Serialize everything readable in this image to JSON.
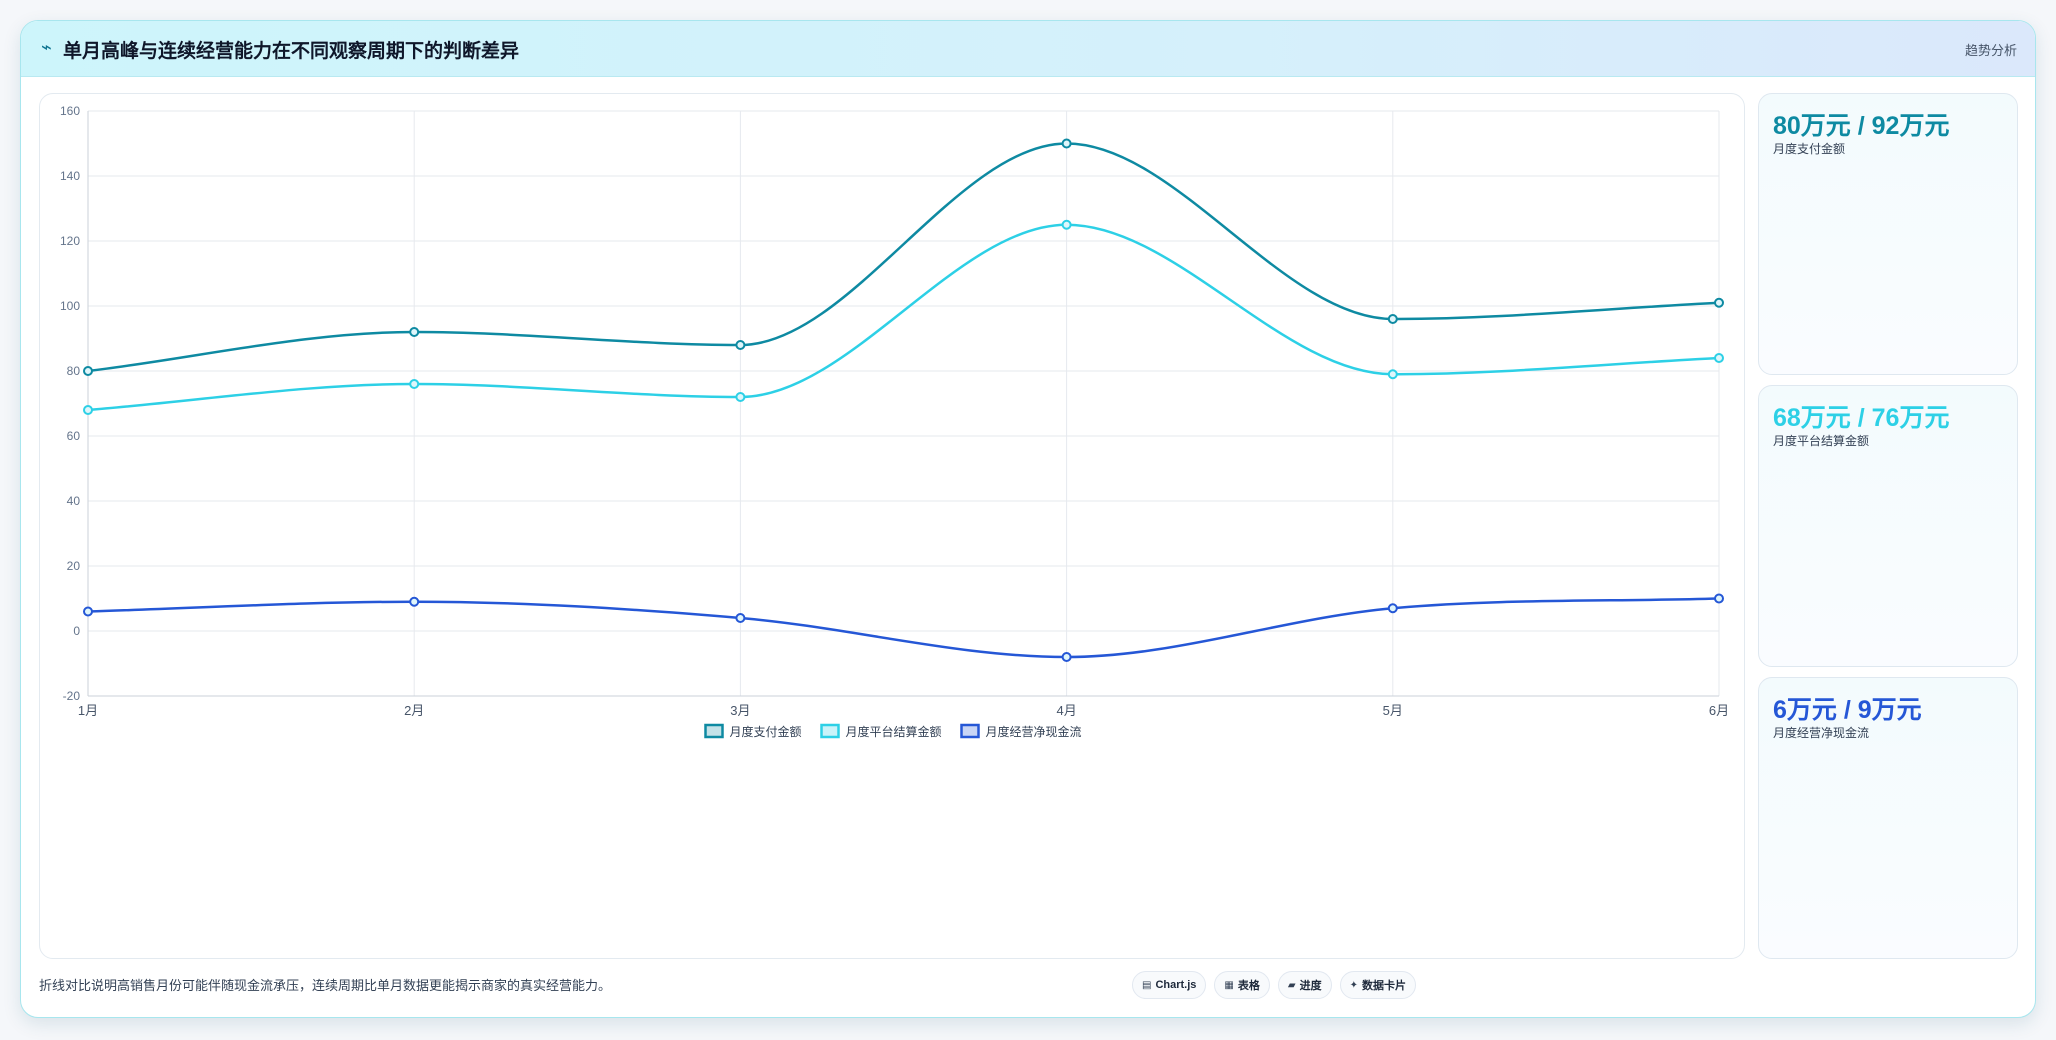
{
  "header": {
    "title": "单月高峰与连续经营能力在不同观察周期下的判断差异",
    "tag": "趋势分析"
  },
  "chart_data": {
    "type": "line",
    "categories": [
      "1月",
      "2月",
      "3月",
      "4月",
      "5月",
      "6月"
    ],
    "series": [
      {
        "name": "月度支付金额",
        "values": [
          80,
          92,
          88,
          150,
          96,
          101
        ],
        "color": "#0e8aa2"
      },
      {
        "name": "月度平台结算金额",
        "values": [
          68,
          76,
          72,
          125,
          79,
          84
        ],
        "color": "#2dd0e6"
      },
      {
        "name": "月度经营净现金流",
        "values": [
          6,
          9,
          4,
          -8,
          7,
          10
        ],
        "color": "#2557d6"
      }
    ],
    "ylim": [
      -20,
      160
    ],
    "yticks": [
      -20,
      0,
      20,
      40,
      60,
      80,
      100,
      120,
      140,
      160
    ],
    "grid": true,
    "legend_position": "bottom"
  },
  "side_cards": [
    {
      "value": "80万元 / 92万元",
      "label": "月度支付金额",
      "color": "#0e8aa2"
    },
    {
      "value": "68万元 / 76万元",
      "label": "月度平台结算金额",
      "color": "#2dd0e6"
    },
    {
      "value": "6万元 / 9万元",
      "label": "月度经营净现金流",
      "color": "#2557d6"
    }
  ],
  "footer": {
    "note": "折线对比说明高销售月份可能伴随现金流承压，连续周期比单月数据更能揭示商家的真实经营能力。",
    "pills": [
      {
        "icon": "chart-icon",
        "glyph": "▤",
        "label": "Chart.js"
      },
      {
        "icon": "table-icon",
        "glyph": "▦",
        "label": "表格"
      },
      {
        "icon": "progress-icon",
        "glyph": "▰",
        "label": "进度"
      },
      {
        "icon": "sparkle-icon",
        "glyph": "✦",
        "label": "数据卡片"
      }
    ]
  }
}
